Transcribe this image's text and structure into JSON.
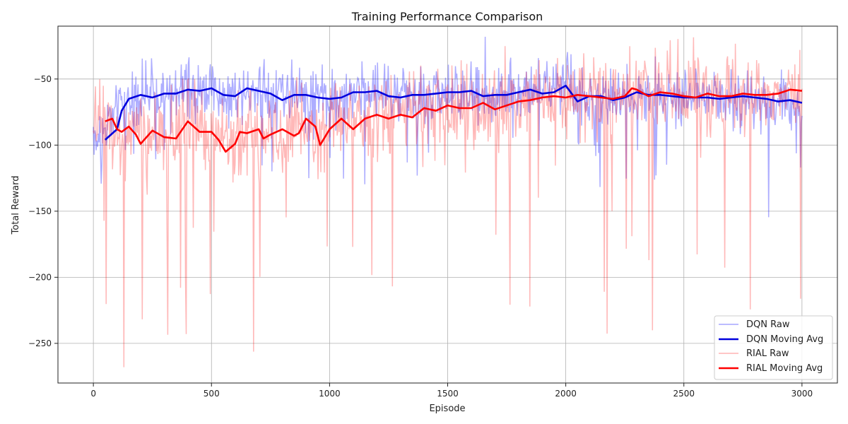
{
  "chart_data": {
    "type": "line",
    "title": "Training Performance Comparison",
    "xlabel": "Episode",
    "ylabel": "Total Reward",
    "xlim": [
      -150,
      3150
    ],
    "ylim": [
      -280,
      -10
    ],
    "x_ticks": [
      0,
      500,
      1000,
      1500,
      2000,
      2500,
      3000
    ],
    "y_ticks": [
      -250,
      -200,
      -150,
      -100,
      -50
    ],
    "x_tick_labels": [
      "0",
      "500",
      "1000",
      "1500",
      "2000",
      "2500",
      "3000"
    ],
    "y_tick_labels": [
      "−250",
      "−200",
      "−150",
      "−100",
      "−50"
    ],
    "grid": true,
    "legend_position": "bottom-right",
    "series": [
      {
        "name": "DQN Raw",
        "color": "#0000ff",
        "opacity": 0.32,
        "style": "raw",
        "x_range": [
          0,
          3000
        ],
        "approx_mean_by_episode": [
          [
            0,
            -90
          ],
          [
            50,
            -90
          ],
          [
            120,
            -65
          ],
          [
            200,
            -62
          ],
          [
            300,
            -61
          ],
          [
            400,
            -58
          ],
          [
            500,
            -57
          ],
          [
            560,
            -64
          ],
          [
            650,
            -57
          ],
          [
            750,
            -60
          ],
          [
            800,
            -65
          ],
          [
            900,
            -62
          ],
          [
            1000,
            -64
          ],
          [
            1100,
            -60
          ],
          [
            1200,
            -59
          ],
          [
            1300,
            -63
          ],
          [
            1400,
            -61
          ],
          [
            1500,
            -59
          ],
          [
            1600,
            -62
          ],
          [
            1700,
            -63
          ],
          [
            1800,
            -59
          ],
          [
            1900,
            -60
          ],
          [
            2000,
            -55
          ],
          [
            2050,
            -66
          ],
          [
            2200,
            -64
          ],
          [
            2400,
            -62
          ],
          [
            2600,
            -64
          ],
          [
            2800,
            -66
          ],
          [
            3000,
            -68
          ]
        ],
        "approx_spread": 22
      },
      {
        "name": "DQN Moving Avg",
        "color": "#0000dd",
        "opacity": 1,
        "style": "avg",
        "x": [
          50,
          100,
          120,
          150,
          200,
          250,
          300,
          350,
          400,
          450,
          500,
          550,
          600,
          650,
          700,
          750,
          800,
          850,
          900,
          950,
          1000,
          1050,
          1100,
          1150,
          1200,
          1250,
          1300,
          1350,
          1400,
          1450,
          1500,
          1550,
          1600,
          1650,
          1700,
          1750,
          1800,
          1850,
          1900,
          1950,
          2000,
          2050,
          2100,
          2150,
          2200,
          2250,
          2300,
          2350,
          2400,
          2450,
          2500,
          2550,
          2600,
          2650,
          2700,
          2750,
          2800,
          2850,
          2900,
          2950,
          3000
        ],
        "values": [
          -96,
          -88,
          -74,
          -65,
          -62,
          -64,
          -61,
          -61,
          -58,
          -59,
          -57,
          -62,
          -63,
          -57,
          -59,
          -61,
          -66,
          -62,
          -62,
          -64,
          -65,
          -64,
          -60,
          -60,
          -59,
          -63,
          -64,
          -62,
          -62,
          -61,
          -60,
          -60,
          -59,
          -63,
          -62,
          -62,
          -60,
          -58,
          -61,
          -60,
          -55,
          -67,
          -63,
          -63,
          -66,
          -64,
          -60,
          -62,
          -62,
          -63,
          -64,
          -64,
          -64,
          -65,
          -64,
          -63,
          -64,
          -65,
          -67,
          -66,
          -68
        ]
      },
      {
        "name": "RIAL Raw",
        "color": "#ff0000",
        "opacity": 0.28,
        "style": "raw",
        "x_range": [
          0,
          3000
        ],
        "approx_mean_by_episode": [
          [
            0,
            -82
          ],
          [
            50,
            -82
          ],
          [
            100,
            -90
          ],
          [
            200,
            -95
          ],
          [
            300,
            -94
          ],
          [
            400,
            -82
          ],
          [
            500,
            -92
          ],
          [
            560,
            -105
          ],
          [
            650,
            -90
          ],
          [
            750,
            -92
          ],
          [
            800,
            -90
          ],
          [
            900,
            -82
          ],
          [
            950,
            -100
          ],
          [
            1000,
            -80
          ],
          [
            1100,
            -85
          ],
          [
            1200,
            -77
          ],
          [
            1300,
            -78
          ],
          [
            1400,
            -75
          ],
          [
            1500,
            -72
          ],
          [
            1600,
            -70
          ],
          [
            1700,
            -72
          ],
          [
            1800,
            -66
          ],
          [
            1900,
            -63
          ],
          [
            2000,
            -64
          ],
          [
            2200,
            -65
          ],
          [
            2300,
            -58
          ],
          [
            2400,
            -60
          ],
          [
            2600,
            -62
          ],
          [
            2800,
            -62
          ],
          [
            3000,
            -58
          ]
        ],
        "approx_spread": 30
      },
      {
        "name": "RIAL Moving Avg",
        "color": "#ff0000",
        "opacity": 1,
        "style": "avg",
        "x": [
          50,
          80,
          100,
          120,
          150,
          180,
          200,
          250,
          300,
          350,
          400,
          450,
          500,
          530,
          560,
          600,
          620,
          650,
          700,
          720,
          750,
          800,
          850,
          870,
          900,
          940,
          960,
          1000,
          1050,
          1100,
          1150,
          1200,
          1250,
          1300,
          1350,
          1400,
          1450,
          1500,
          1550,
          1600,
          1650,
          1700,
          1750,
          1800,
          1850,
          1900,
          1950,
          2000,
          2050,
          2100,
          2150,
          2200,
          2250,
          2280,
          2300,
          2350,
          2400,
          2450,
          2500,
          2550,
          2600,
          2650,
          2700,
          2750,
          2800,
          2850,
          2900,
          2950,
          3000
        ],
        "values": [
          -82,
          -80,
          -88,
          -90,
          -86,
          -92,
          -99,
          -89,
          -94,
          -95,
          -82,
          -90,
          -90,
          -96,
          -105,
          -99,
          -90,
          -91,
          -88,
          -95,
          -92,
          -88,
          -93,
          -91,
          -80,
          -86,
          -100,
          -88,
          -80,
          -88,
          -80,
          -77,
          -80,
          -77,
          -79,
          -72,
          -74,
          -70,
          -72,
          -72,
          -68,
          -73,
          -70,
          -67,
          -66,
          -64,
          -63,
          -64,
          -62,
          -63,
          -64,
          -65,
          -63,
          -57,
          -58,
          -63,
          -60,
          -61,
          -63,
          -64,
          -61,
          -63,
          -63,
          -61,
          -62,
          -62,
          -61,
          -58,
          -59
        ]
      }
    ]
  }
}
